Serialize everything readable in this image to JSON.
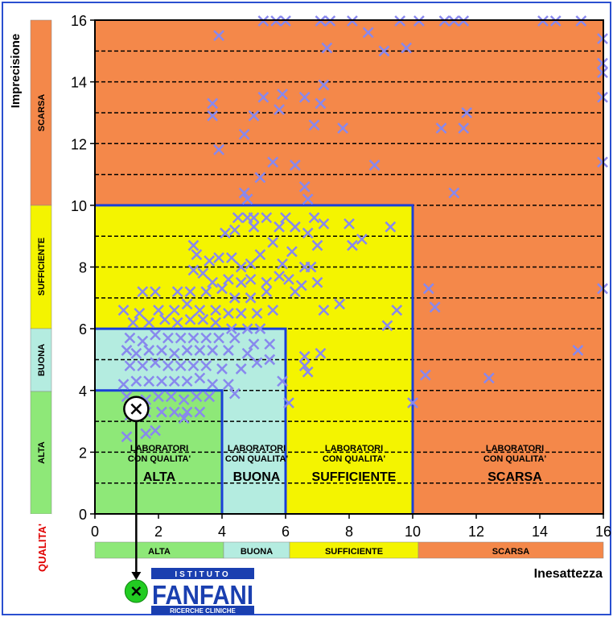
{
  "chart_data": {
    "type": "scatter",
    "xlabel": "Inesattezza",
    "ylabel": "Imprecisione",
    "xlim": [
      0,
      16
    ],
    "ylim": [
      0,
      16
    ],
    "xticks": [
      "0",
      "2",
      "4",
      "6",
      "8",
      "10",
      "12",
      "14",
      "16"
    ],
    "yticks": [
      "0",
      "2",
      "4",
      "6",
      "8",
      "10",
      "12",
      "14",
      "16"
    ],
    "grid": "dashed horizontal lines every 1 unit",
    "zones": [
      {
        "name": "ALTA",
        "xmax": 4,
        "ymax": 4,
        "color": "#8ee878"
      },
      {
        "name": "BUONA",
        "xmax": 6,
        "ymax": 6,
        "color": "#b4ece0"
      },
      {
        "name": "SUFFICIENTE",
        "xmax": 10,
        "ymax": 10,
        "color": "#f4f400"
      },
      {
        "name": "SCARSA",
        "xmax": 16,
        "ymax": 16,
        "color": "#f4884a"
      }
    ],
    "zone_labels": {
      "prefix_line1": "LABORATORI",
      "prefix_line2": "CON QUALITA'",
      "names": [
        "ALTA",
        "BUONA",
        "SUFFICIENTE",
        "SCARSA"
      ]
    },
    "y_scale_labels": {
      "title": "QUALITA'",
      "bands": [
        "ALTA",
        "BUONA",
        "SUFFICIENTE",
        "SCARSA"
      ]
    },
    "x_scale_labels": [
      "ALTA",
      "BUONA",
      "SUFFICIENTE",
      "SCARSA"
    ],
    "marked_point": {
      "x": 1.3,
      "y": 3.4
    },
    "points": [
      [
        3.9,
        15.5
      ],
      [
        5.3,
        16.0
      ],
      [
        5.7,
        16.0
      ],
      [
        6.0,
        16.0
      ],
      [
        7.1,
        16.0
      ],
      [
        7.4,
        16.0
      ],
      [
        8.1,
        16.0
      ],
      [
        8.6,
        15.6
      ],
      [
        9.6,
        16.0
      ],
      [
        10.2,
        16.0
      ],
      [
        11.0,
        16.0
      ],
      [
        11.3,
        16.0
      ],
      [
        11.6,
        16.0
      ],
      [
        14.1,
        16.0
      ],
      [
        14.5,
        16.0
      ],
      [
        15.3,
        16.0
      ],
      [
        7.3,
        15.1
      ],
      [
        9.1,
        15.0
      ],
      [
        9.8,
        15.1
      ],
      [
        16.0,
        15.4
      ],
      [
        16.0,
        14.6
      ],
      [
        16.0,
        14.3
      ],
      [
        16.0,
        13.5
      ],
      [
        7.2,
        13.9
      ],
      [
        5.3,
        13.5
      ],
      [
        5.9,
        13.6
      ],
      [
        6.6,
        13.5
      ],
      [
        7.1,
        13.3
      ],
      [
        5.8,
        13.1
      ],
      [
        3.7,
        13.3
      ],
      [
        3.7,
        12.9
      ],
      [
        5.0,
        12.9
      ],
      [
        4.7,
        12.3
      ],
      [
        6.9,
        12.6
      ],
      [
        7.8,
        12.5
      ],
      [
        10.9,
        12.5
      ],
      [
        11.6,
        12.5
      ],
      [
        11.7,
        13.0
      ],
      [
        3.9,
        11.8
      ],
      [
        5.6,
        11.4
      ],
      [
        6.3,
        11.3
      ],
      [
        8.8,
        11.3
      ],
      [
        5.2,
        10.9
      ],
      [
        6.6,
        10.6
      ],
      [
        6.7,
        10.2
      ],
      [
        4.7,
        10.4
      ],
      [
        4.8,
        10.2
      ],
      [
        11.3,
        10.4
      ],
      [
        16.0,
        11.4
      ],
      [
        4.5,
        9.6
      ],
      [
        4.8,
        9.6
      ],
      [
        5.0,
        9.6
      ],
      [
        5.4,
        9.6
      ],
      [
        6.0,
        9.6
      ],
      [
        6.9,
        9.6
      ],
      [
        7.2,
        9.4
      ],
      [
        8.0,
        9.4
      ],
      [
        9.3,
        9.3
      ],
      [
        4.1,
        9.1
      ],
      [
        4.4,
        9.2
      ],
      [
        5.0,
        9.3
      ],
      [
        5.8,
        9.3
      ],
      [
        6.3,
        9.3
      ],
      [
        6.7,
        9.1
      ],
      [
        8.4,
        8.9
      ],
      [
        8.1,
        8.7
      ],
      [
        5.6,
        8.8
      ],
      [
        6.2,
        8.5
      ],
      [
        7.0,
        8.7
      ],
      [
        3.1,
        8.7
      ],
      [
        3.2,
        8.4
      ],
      [
        3.6,
        8.2
      ],
      [
        3.9,
        8.3
      ],
      [
        4.3,
        8.3
      ],
      [
        4.6,
        8.0
      ],
      [
        4.9,
        8.1
      ],
      [
        5.2,
        8.4
      ],
      [
        5.9,
        8.1
      ],
      [
        6.6,
        8.0
      ],
      [
        6.8,
        8.0
      ],
      [
        3.1,
        7.9
      ],
      [
        3.4,
        7.8
      ],
      [
        3.7,
        7.5
      ],
      [
        4.2,
        7.6
      ],
      [
        4.6,
        7.5
      ],
      [
        4.9,
        7.6
      ],
      [
        5.4,
        7.5
      ],
      [
        5.8,
        7.7
      ],
      [
        6.1,
        7.6
      ],
      [
        6.5,
        7.4
      ],
      [
        7.0,
        7.5
      ],
      [
        1.5,
        7.2
      ],
      [
        1.9,
        7.2
      ],
      [
        2.6,
        7.2
      ],
      [
        3.0,
        7.2
      ],
      [
        3.5,
        7.2
      ],
      [
        4.0,
        7.3
      ],
      [
        4.4,
        7.0
      ],
      [
        4.9,
        7.0
      ],
      [
        5.4,
        7.2
      ],
      [
        6.3,
        7.2
      ],
      [
        10.5,
        7.3
      ],
      [
        16.0,
        7.3
      ],
      [
        0.9,
        6.6
      ],
      [
        1.4,
        6.5
      ],
      [
        2.0,
        6.6
      ],
      [
        2.5,
        6.6
      ],
      [
        2.9,
        6.8
      ],
      [
        3.3,
        6.6
      ],
      [
        3.8,
        6.6
      ],
      [
        4.2,
        6.5
      ],
      [
        4.6,
        6.5
      ],
      [
        5.1,
        6.5
      ],
      [
        5.6,
        6.6
      ],
      [
        7.2,
        6.6
      ],
      [
        7.7,
        6.8
      ],
      [
        9.5,
        6.6
      ],
      [
        10.7,
        6.7
      ],
      [
        1.2,
        6.2
      ],
      [
        1.7,
        6.2
      ],
      [
        2.2,
        6.3
      ],
      [
        2.6,
        6.2
      ],
      [
        3.0,
        6.3
      ],
      [
        3.4,
        6.3
      ],
      [
        3.8,
        6.2
      ],
      [
        4.3,
        6.0
      ],
      [
        4.8,
        6.0
      ],
      [
        5.2,
        6.0
      ],
      [
        9.2,
        6.1
      ],
      [
        1.1,
        5.7
      ],
      [
        1.5,
        5.6
      ],
      [
        1.9,
        5.8
      ],
      [
        2.3,
        5.7
      ],
      [
        2.7,
        5.7
      ],
      [
        3.1,
        5.7
      ],
      [
        3.5,
        5.7
      ],
      [
        3.9,
        5.7
      ],
      [
        4.4,
        5.7
      ],
      [
        5.0,
        5.5
      ],
      [
        5.5,
        5.5
      ],
      [
        1.0,
        5.3
      ],
      [
        1.3,
        5.2
      ],
      [
        1.7,
        5.3
      ],
      [
        2.1,
        5.3
      ],
      [
        2.5,
        5.2
      ],
      [
        2.9,
        5.3
      ],
      [
        3.3,
        5.3
      ],
      [
        3.7,
        5.3
      ],
      [
        4.2,
        5.3
      ],
      [
        4.8,
        5.2
      ],
      [
        5.5,
        5.0
      ],
      [
        6.6,
        5.1
      ],
      [
        7.1,
        5.2
      ],
      [
        15.2,
        5.3
      ],
      [
        1.1,
        4.8
      ],
      [
        1.5,
        4.8
      ],
      [
        1.9,
        4.9
      ],
      [
        2.3,
        4.8
      ],
      [
        2.7,
        4.8
      ],
      [
        3.1,
        4.8
      ],
      [
        3.5,
        4.8
      ],
      [
        4.0,
        4.7
      ],
      [
        4.6,
        4.7
      ],
      [
        5.1,
        4.9
      ],
      [
        6.6,
        4.8
      ],
      [
        6.7,
        4.6
      ],
      [
        10.4,
        4.5
      ],
      [
        12.4,
        4.4
      ],
      [
        0.9,
        4.2
      ],
      [
        1.3,
        4.3
      ],
      [
        1.7,
        4.3
      ],
      [
        2.1,
        4.3
      ],
      [
        2.5,
        4.3
      ],
      [
        2.9,
        4.3
      ],
      [
        3.3,
        4.4
      ],
      [
        3.7,
        4.2
      ],
      [
        4.2,
        4.2
      ],
      [
        5.9,
        4.3
      ],
      [
        1.0,
        3.8
      ],
      [
        1.6,
        3.7
      ],
      [
        2.0,
        3.8
      ],
      [
        2.4,
        3.8
      ],
      [
        2.8,
        3.7
      ],
      [
        3.2,
        3.8
      ],
      [
        3.6,
        3.8
      ],
      [
        4.4,
        3.9
      ],
      [
        6.1,
        3.6
      ],
      [
        10.0,
        3.6
      ],
      [
        1.1,
        3.2
      ],
      [
        1.6,
        3.3
      ],
      [
        2.1,
        3.3
      ],
      [
        2.5,
        3.3
      ],
      [
        2.9,
        3.3
      ],
      [
        3.3,
        3.3
      ],
      [
        1.0,
        2.5
      ],
      [
        1.6,
        2.6
      ],
      [
        1.9,
        2.7
      ],
      [
        2.8,
        3.1
      ]
    ]
  },
  "logo": {
    "line1": "ISTITUTO",
    "line2": "FANFANI",
    "line3": "RICERCHE CLINICHE"
  }
}
